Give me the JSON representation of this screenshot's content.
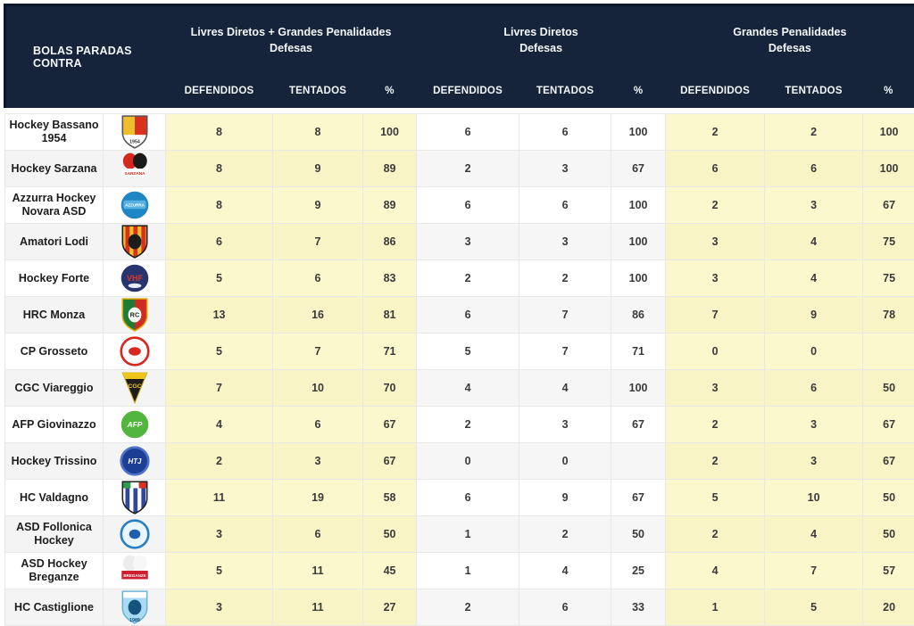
{
  "header": {
    "corner": "BOLAS PARADAS CONTRA",
    "groups": [
      {
        "line1": "Livres Diretos + Grandes Penalidades",
        "line2": "Defesas"
      },
      {
        "line1": "Livres Diretos",
        "line2": "Defesas"
      },
      {
        "line1": "Grandes Penalidades",
        "line2": "Defesas"
      }
    ],
    "cols": [
      "DEFENDIDOS",
      "TENTADOS",
      "%"
    ]
  },
  "colors": {
    "header_bg": "#15243a",
    "header_border": "#0c1829",
    "yellow_cell": "#fcf8cd",
    "white_cell": "#ffffff",
    "grid_border": "#e8e8e8",
    "text_dark": "#3a3a3a"
  },
  "teams": [
    {
      "name": "Hockey Bassano 1954",
      "logo": {
        "type": "shield",
        "bg": "#ffffff",
        "left": "#f0bd2c",
        "right": "#d8321f",
        "halfH": 20,
        "border": "#555555",
        "text": "1954",
        "textColor": "#333333",
        "textSize": 5,
        "textY": 31
      },
      "values": {
        "ldgp": [
          "8",
          "8",
          "100"
        ],
        "ld": [
          "6",
          "6",
          "100"
        ],
        "gp": [
          "2",
          "2",
          "100"
        ]
      }
    },
    {
      "name": "Hockey Sarzana",
      "logo": {
        "type": "rect",
        "sq1": "#d8281e",
        "sq2": "#1a1a1a",
        "bandBg": "#ffffff",
        "text": "SARZANA",
        "textColor": "#d8281e",
        "textSize": 4.5,
        "textY": 25.5
      },
      "values": {
        "ldgp": [
          "8",
          "9",
          "89"
        ],
        "ld": [
          "2",
          "3",
          "67"
        ],
        "gp": [
          "6",
          "6",
          "100"
        ]
      }
    },
    {
      "name": "Azzurra Hockey Novara ASD",
      "logo": {
        "type": "circle",
        "bg": "#1f86c5",
        "band": "#57b1e1",
        "text": "AZZURRA",
        "textColor": "#ffffff",
        "textSize": 4.3,
        "textY": 20.5
      },
      "values": {
        "ldgp": [
          "8",
          "9",
          "89"
        ],
        "ld": [
          "6",
          "6",
          "100"
        ],
        "gp": [
          "2",
          "3",
          "67"
        ]
      }
    },
    {
      "name": "Amatori Lodi",
      "logo": {
        "type": "shield",
        "bg": "#f0bd2c",
        "stripes": "#d8321f",
        "glyph": "#1c1c1c",
        "border": "#1c1c1c"
      },
      "values": {
        "ldgp": [
          "6",
          "7",
          "86"
        ],
        "ld": [
          "3",
          "3",
          "100"
        ],
        "gp": [
          "3",
          "4",
          "75"
        ]
      }
    },
    {
      "name": "Hockey Forte",
      "logo": {
        "type": "circle",
        "bg": "#27346d",
        "text": "VHF",
        "textColor": "#d93a2b",
        "textSize": 8.5,
        "textY": 22,
        "glyph": "#e6ecf7",
        "glyphY": 27,
        "glyphRX": 7,
        "glyphRY": 2.5
      },
      "values": {
        "ldgp": [
          "5",
          "6",
          "83"
        ],
        "ld": [
          "2",
          "2",
          "100"
        ],
        "gp": [
          "3",
          "4",
          "75"
        ]
      }
    },
    {
      "name": "HRC Monza",
      "logo": {
        "type": "shield",
        "bg": "#ffffff",
        "left": "#1d7c35",
        "right": "#cf2b20",
        "border": "#d8a800",
        "glyph": "#ffffff",
        "text": "RC",
        "textColor": "#222222",
        "textSize": 7,
        "textY": 21.5
      },
      "values": {
        "ldgp": [
          "13",
          "16",
          "81"
        ],
        "ld": [
          "6",
          "7",
          "86"
        ],
        "gp": [
          "7",
          "9",
          "78"
        ]
      }
    },
    {
      "name": "CP Grosseto",
      "logo": {
        "type": "circle",
        "bg": "#ffffff",
        "ring": "#d8281e",
        "glyph": "#d8281e",
        "glyphRX": 6.5,
        "glyphRY": 4.5
      },
      "values": {
        "ldgp": [
          "5",
          "7",
          "71"
        ],
        "ld": [
          "5",
          "7",
          "71"
        ],
        "gp": [
          "0",
          "0",
          ""
        ]
      }
    },
    {
      "name": "CGC Viareggio",
      "logo": {
        "type": "triangle",
        "bg": "#1d1d1d",
        "band": "#efc51c",
        "border": "#caa50f",
        "text": "CGC",
        "textColor": "#efc51c",
        "textSize": 6.5,
        "textY": 19
      },
      "values": {
        "ldgp": [
          "7",
          "10",
          "70"
        ],
        "ld": [
          "4",
          "4",
          "100"
        ],
        "gp": [
          "3",
          "6",
          "50"
        ]
      }
    },
    {
      "name": "AFP Giovinazzo",
      "logo": {
        "type": "circle",
        "bg": "#52b53e",
        "text": "AFP",
        "textColor": "#ffffff",
        "textSize": 8,
        "italic": true,
        "textY": 22
      },
      "values": {
        "ldgp": [
          "4",
          "6",
          "67"
        ],
        "ld": [
          "2",
          "3",
          "67"
        ],
        "gp": [
          "2",
          "3",
          "67"
        ]
      }
    },
    {
      "name": "Hockey Trissino",
      "logo": {
        "type": "circle",
        "bg": "#1c3e94",
        "ring": "#5071c9",
        "text": "HTJ",
        "textColor": "#ffffff",
        "textSize": 7.5,
        "italic": true,
        "textY": 22
      },
      "values": {
        "ldgp": [
          "2",
          "3",
          "67"
        ],
        "ld": [
          "0",
          "0",
          ""
        ],
        "gp": [
          "2",
          "3",
          "67"
        ]
      }
    },
    {
      "name": "HC Valdagno",
      "logo": {
        "type": "shield",
        "bg": "#ffffff",
        "stripes": "#31479e",
        "chief": [
          "#2e9e48",
          "#ffffff",
          "#d8321f"
        ],
        "border": "#222222"
      },
      "values": {
        "ldgp": [
          "11",
          "19",
          "58"
        ],
        "ld": [
          "6",
          "9",
          "67"
        ],
        "gp": [
          "5",
          "10",
          "50"
        ]
      }
    },
    {
      "name": "ASD Follonica Hockey",
      "logo": {
        "type": "circle",
        "bg": "#eaf6fd",
        "ring": "#2a7fc0",
        "glyph": "#1f5fae",
        "glyphRX": 6,
        "glyphRY": 5
      },
      "values": {
        "ldgp": [
          "3",
          "6",
          "50"
        ],
        "ld": [
          "1",
          "2",
          "50"
        ],
        "gp": [
          "2",
          "4",
          "50"
        ]
      }
    },
    {
      "name": "ASD Hockey Breganze",
      "logo": {
        "type": "rect",
        "sq1": "#ececec",
        "sq2": "#f7f7f7",
        "bandBg": "#cf1f2e",
        "text": "BREGANZE",
        "textColor": "#ffffff",
        "textSize": 4.3,
        "textY": 25.5
      },
      "values": {
        "ldgp": [
          "5",
          "11",
          "45"
        ],
        "ld": [
          "1",
          "4",
          "25"
        ],
        "gp": [
          "4",
          "7",
          "57"
        ]
      }
    },
    {
      "name": "HC Castiglione",
      "logo": {
        "type": "shield",
        "bg": "#a9dbf4",
        "chief": [
          "#ffffff"
        ],
        "glyph": "#15537e",
        "border": "#6fb4d6",
        "text": "1989",
        "textColor": "#0f4c77",
        "textSize": 5,
        "textY": 34
      },
      "values": {
        "ldgp": [
          "3",
          "11",
          "27"
        ],
        "ld": [
          "2",
          "6",
          "33"
        ],
        "gp": [
          "1",
          "5",
          "20"
        ]
      }
    }
  ]
}
